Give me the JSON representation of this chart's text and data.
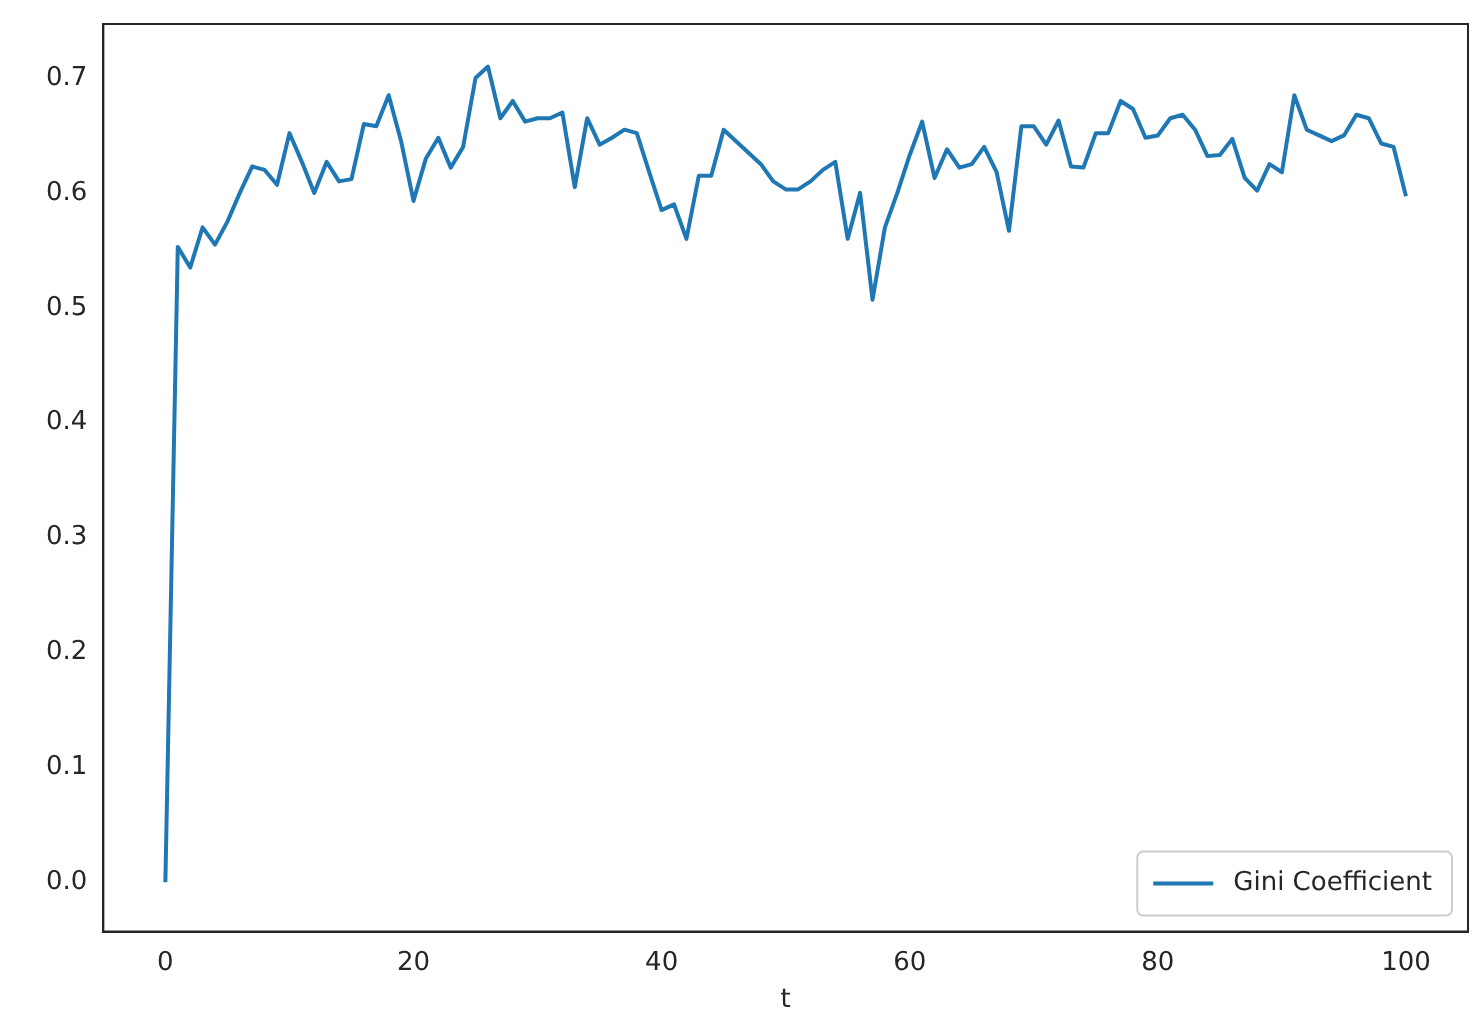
{
  "chart_data": {
    "type": "line",
    "xlabel": "t",
    "x": [
      0,
      1,
      2,
      3,
      4,
      5,
      6,
      7,
      8,
      9,
      10,
      11,
      12,
      13,
      14,
      15,
      16,
      17,
      18,
      19,
      20,
      21,
      22,
      23,
      24,
      25,
      26,
      27,
      28,
      29,
      30,
      31,
      32,
      33,
      34,
      35,
      36,
      37,
      38,
      39,
      40,
      41,
      42,
      43,
      44,
      45,
      46,
      47,
      48,
      49,
      50,
      51,
      52,
      53,
      54,
      55,
      56,
      57,
      58,
      59,
      60,
      61,
      62,
      63,
      64,
      65,
      66,
      67,
      68,
      69,
      70,
      71,
      72,
      73,
      74,
      75,
      76,
      77,
      78,
      79,
      80,
      81,
      82,
      83,
      84,
      85,
      86,
      87,
      88,
      89,
      90,
      91,
      92,
      93,
      94,
      95,
      96,
      97,
      98,
      99,
      100
    ],
    "series": [
      {
        "name": "Gini Coefficient",
        "color": "#1f77b4",
        "values": [
          0.0,
          0.553,
          0.535,
          0.57,
          0.555,
          0.575,
          0.6,
          0.623,
          0.62,
          0.607,
          0.652,
          0.627,
          0.6,
          0.627,
          0.61,
          0.612,
          0.66,
          0.658,
          0.685,
          0.645,
          0.593,
          0.63,
          0.648,
          0.622,
          0.64,
          0.7,
          0.71,
          0.665,
          0.68,
          0.662,
          0.665,
          0.665,
          0.67,
          0.605,
          0.665,
          0.642,
          0.648,
          0.655,
          0.652,
          0.618,
          0.585,
          0.59,
          0.56,
          0.615,
          0.615,
          0.655,
          0.645,
          0.635,
          0.625,
          0.61,
          0.603,
          0.603,
          0.61,
          0.62,
          0.627,
          0.56,
          0.6,
          0.507,
          0.57,
          0.6,
          0.633,
          0.662,
          0.613,
          0.638,
          0.622,
          0.625,
          0.64,
          0.618,
          0.567,
          0.658,
          0.658,
          0.642,
          0.663,
          0.623,
          0.622,
          0.652,
          0.652,
          0.68,
          0.673,
          0.648,
          0.65,
          0.665,
          0.668,
          0.655,
          0.632,
          0.633,
          0.647,
          0.613,
          0.602,
          0.625,
          0.618,
          0.685,
          0.655,
          0.65,
          0.645,
          0.65,
          0.668,
          0.665,
          0.643,
          0.64,
          0.597
        ]
      }
    ],
    "xlim": [
      -5,
      105
    ],
    "xticks": [
      0,
      20,
      40,
      60,
      80,
      100
    ],
    "ylim": [
      -0.043,
      0.747
    ],
    "yticks": [
      {
        "value": 0,
        "label": "0.0"
      },
      0.1,
      0.2,
      0.3,
      0.4,
      0.5,
      0.6,
      0.7
    ],
    "grid": false,
    "legend": "bottom right",
    "marker": "none",
    "line_style": "solid"
  }
}
